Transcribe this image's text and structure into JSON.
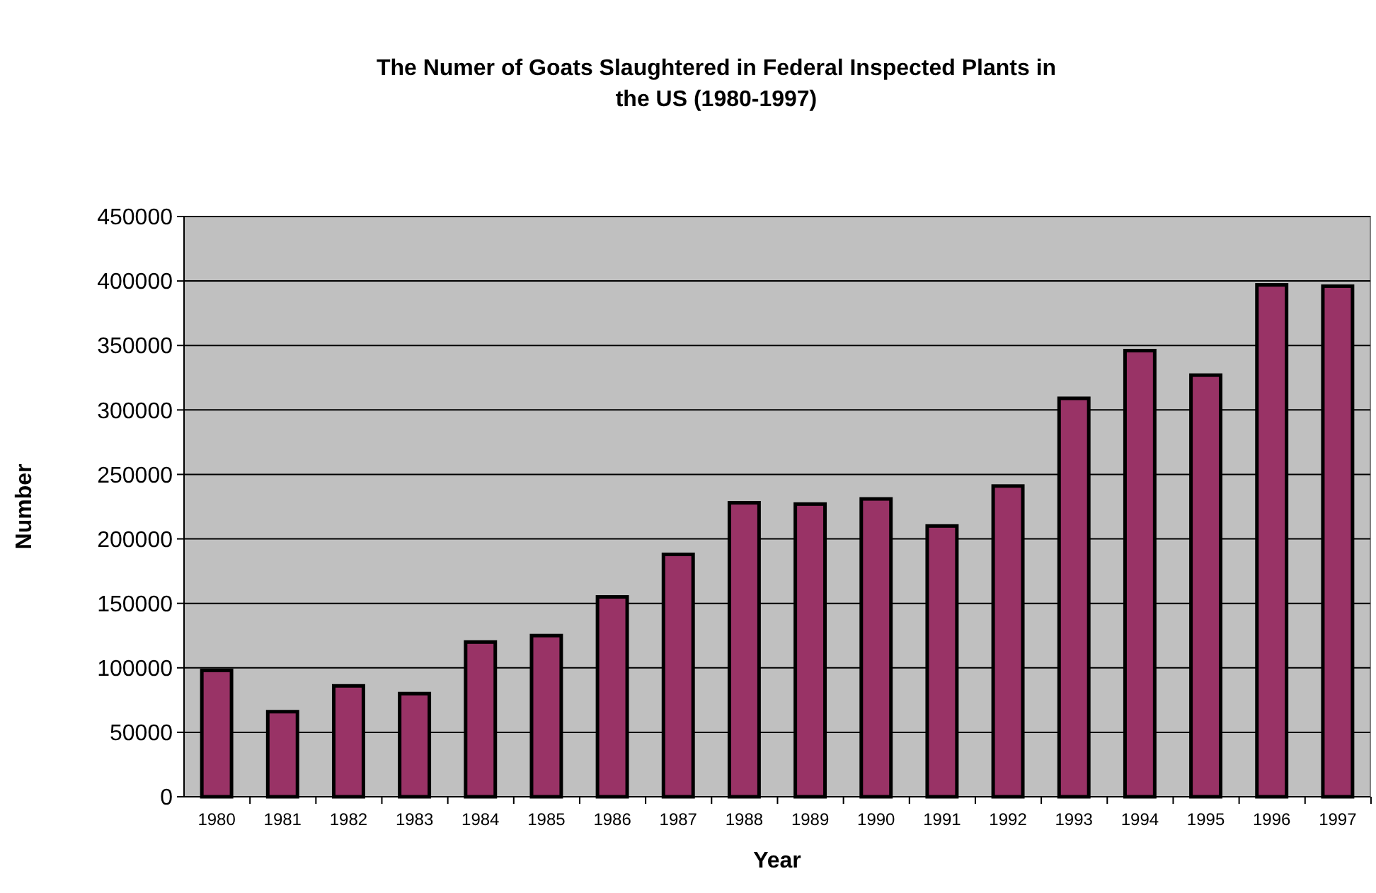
{
  "chart_data": {
    "type": "bar",
    "title": "The Numer of Goats Slaughtered in Federal Inspected Plants in the US (1980-1997)",
    "xlabel": "Year",
    "ylabel": "Number",
    "categories": [
      "1980",
      "1981",
      "1982",
      "1983",
      "1984",
      "1985",
      "1986",
      "1987",
      "1988",
      "1989",
      "1990",
      "1991",
      "1992",
      "1993",
      "1994",
      "1995",
      "1996",
      "1997"
    ],
    "values": [
      98000,
      66000,
      86000,
      80000,
      120000,
      125000,
      155000,
      188000,
      228000,
      227000,
      231000,
      210000,
      241000,
      309000,
      346000,
      327000,
      397000,
      396000
    ],
    "color": "#993366",
    "ylim": [
      0,
      450000
    ],
    "yticks": [
      0,
      50000,
      100000,
      150000,
      200000,
      250000,
      300000,
      350000,
      400000,
      450000
    ],
    "grid": "y"
  }
}
